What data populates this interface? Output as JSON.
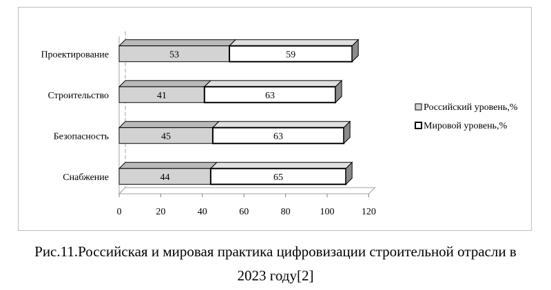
{
  "caption": {
    "line1": "Рис.11.Российская и мировая практика цифровизации строительной отрасли в",
    "line2": "2023 году[2]"
  },
  "chart_data": {
    "type": "bar",
    "orientation": "horizontal",
    "stacked": true,
    "three_d": true,
    "categories": [
      "Проектирование",
      "Строительство",
      "Безопасность",
      "Снабжение"
    ],
    "series": [
      {
        "name": "Российский уровень,%",
        "values": [
          53,
          41,
          45,
          44
        ],
        "color": "#d3d3d3"
      },
      {
        "name": "Мировой уровень,%",
        "values": [
          59,
          63,
          63,
          65
        ],
        "color": "#ffffff"
      }
    ],
    "xlim": [
      0,
      120
    ],
    "xticks": [
      "0",
      "20",
      "40",
      "60",
      "80",
      "100",
      "120"
    ],
    "grid": false,
    "legend_position": "right"
  }
}
